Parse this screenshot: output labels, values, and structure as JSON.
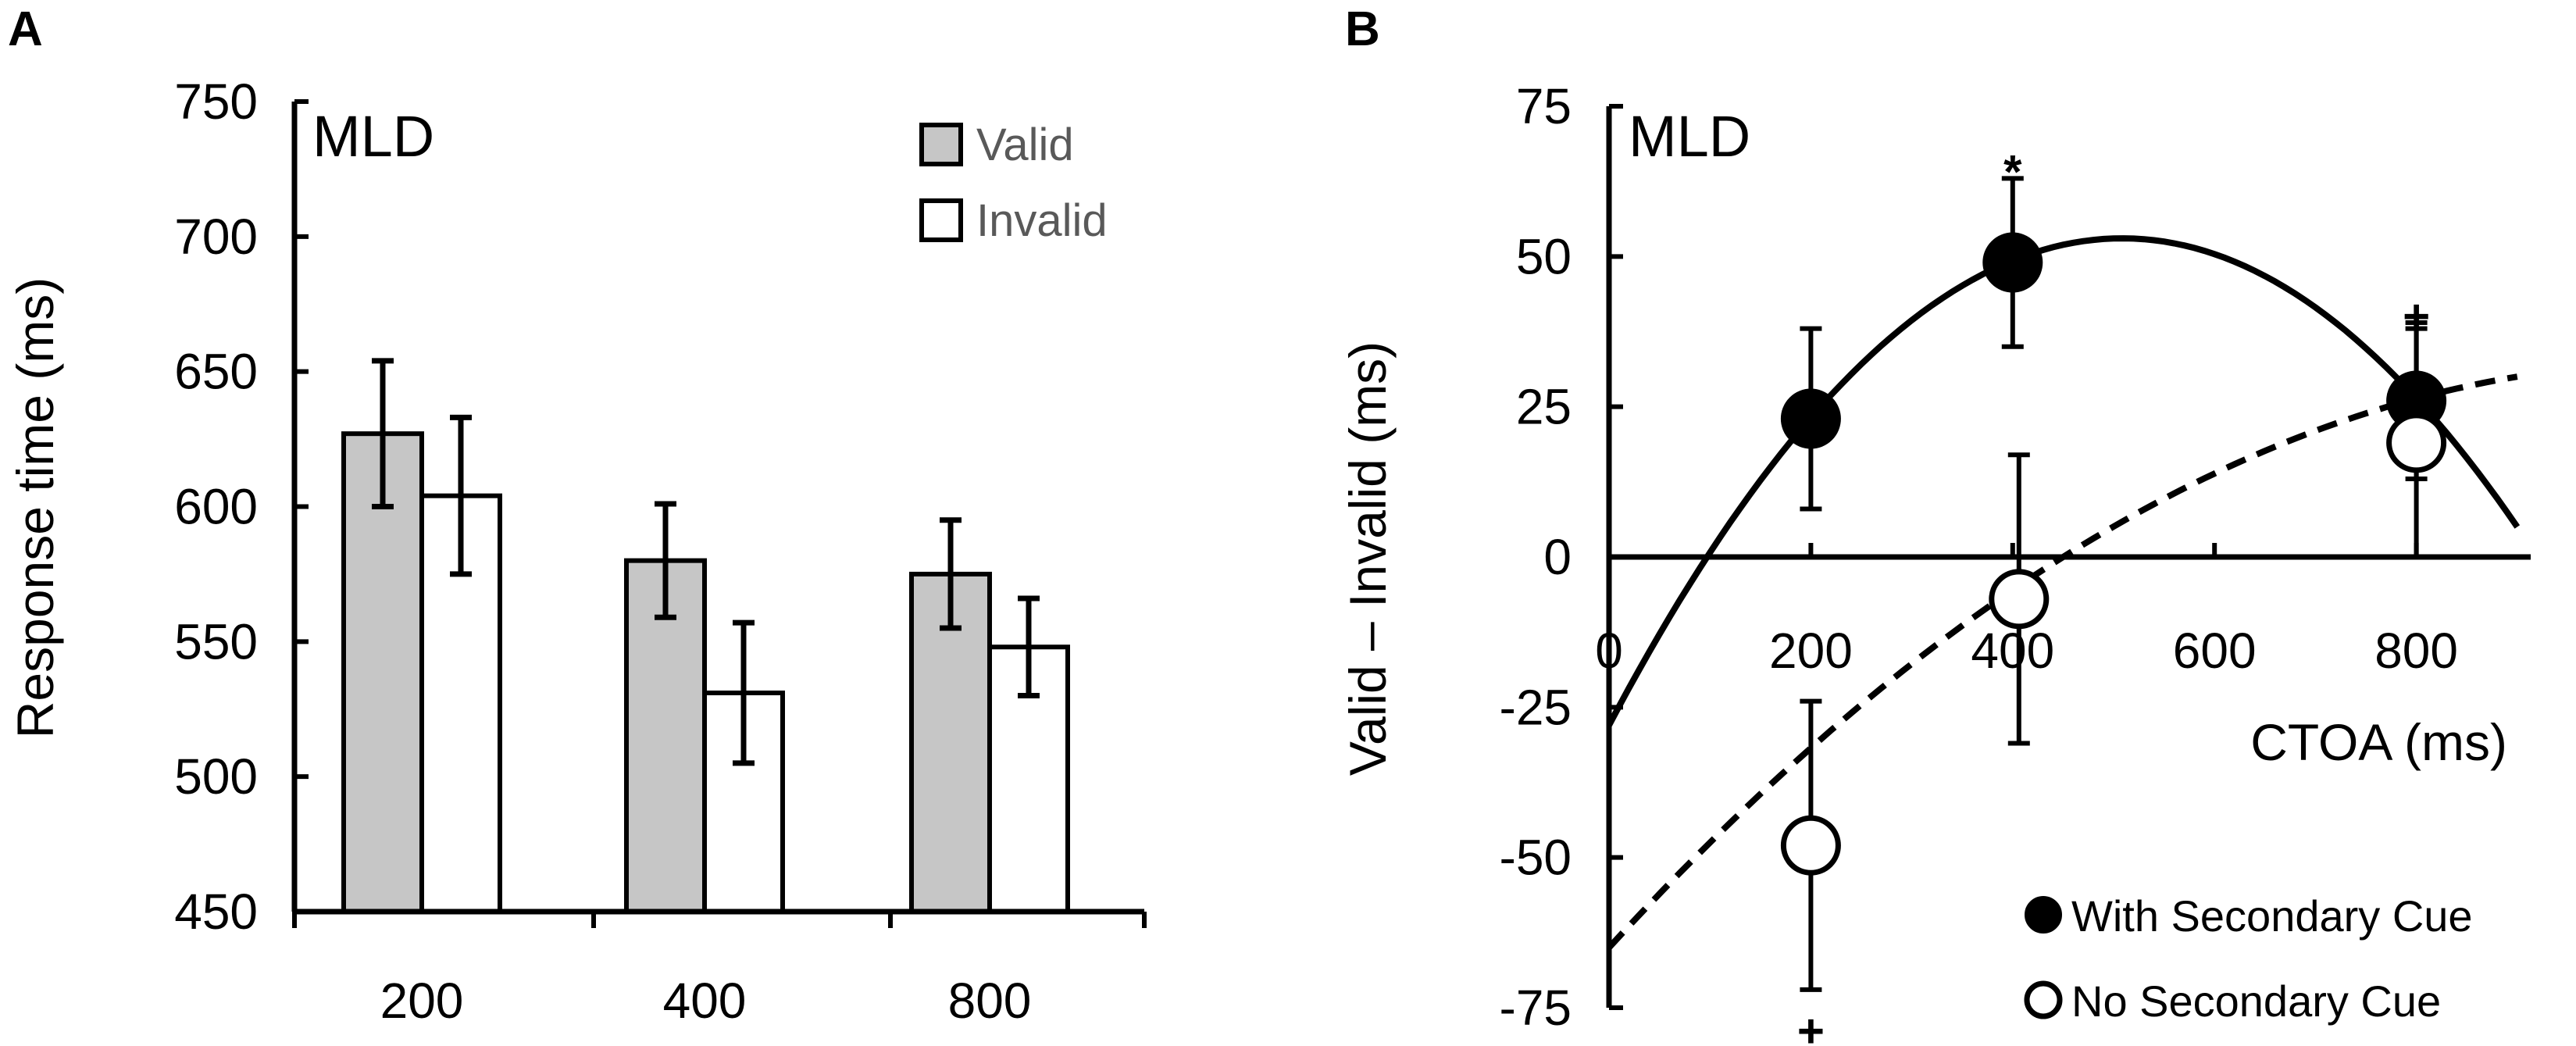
{
  "panels": {
    "a": {
      "letter": "A",
      "corner_label": "MLD"
    },
    "b": {
      "letter": "B",
      "corner_label": "MLD"
    }
  },
  "chart_data": [
    {
      "type": "bar",
      "panel": "A",
      "title": "MLD",
      "xlabel": "",
      "ylabel": "Response time (ms)",
      "categories": [
        "200",
        "400",
        "800"
      ],
      "ylim": [
        450,
        750
      ],
      "yticks": [
        450,
        500,
        550,
        600,
        650,
        700,
        750
      ],
      "series": [
        {
          "name": "Valid",
          "color": "#c6c6c6",
          "values": [
            627,
            580,
            575
          ],
          "errors": [
            27,
            21,
            20
          ]
        },
        {
          "name": "Invalid",
          "color": "#ffffff",
          "values": [
            604,
            531,
            548
          ],
          "errors": [
            29,
            26,
            18
          ]
        }
      ],
      "legend_position": "top-right"
    },
    {
      "type": "scatter",
      "panel": "B",
      "title": "MLD",
      "xlabel": "CTOA (ms)",
      "ylabel": "Valid – Invalid (ms)",
      "xlim": [
        0,
        900
      ],
      "ylim": [
        -75,
        75
      ],
      "xticks": [
        0,
        200,
        400,
        600,
        800
      ],
      "yticks": [
        75,
        50,
        25,
        0,
        -25,
        -50,
        -75
      ],
      "series": [
        {
          "name": "With Secondary Cue",
          "marker": "filled-circle",
          "x": [
            200,
            400,
            800
          ],
          "y": [
            23,
            49,
            26
          ],
          "errors": [
            15,
            14,
            13
          ],
          "fit": {
            "type": "quadratic",
            "curve": [
              [
                0,
                -28
              ],
              [
                500,
                53
              ],
              [
                900,
                5
              ]
            ]
          }
        },
        {
          "name": "No Secondary Cue",
          "marker": "open-circle",
          "x": [
            200,
            400,
            800
          ],
          "y": [
            -48,
            -7,
            19
          ],
          "errors": [
            24,
            24,
            19
          ],
          "fit": {
            "type": "quadratic",
            "curve": [
              [
                0,
                -65
              ],
              [
                450,
                0
              ],
              [
                900,
                30
              ]
            ]
          }
        }
      ],
      "annotations": [
        {
          "text": "*",
          "x": 400,
          "y": 64
        },
        {
          "text": "+",
          "x": 800,
          "y": 40
        },
        {
          "text": "+",
          "x": 200,
          "y": -79
        }
      ],
      "legend_position": "bottom-right"
    }
  ]
}
